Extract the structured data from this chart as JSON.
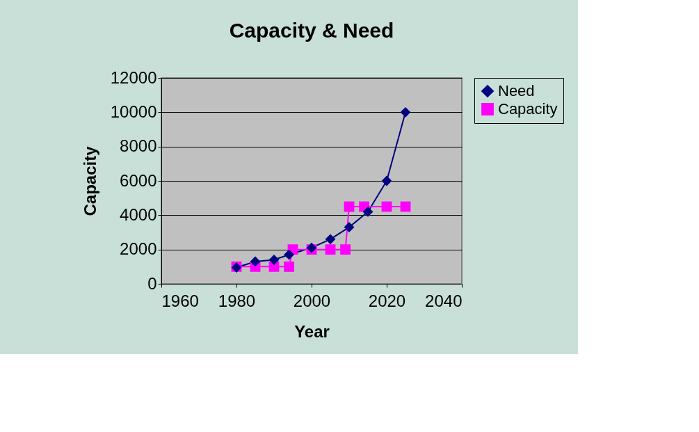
{
  "chart_data": {
    "type": "line",
    "title": "Capacity & Need",
    "xlabel": "Year",
    "ylabel": "Capacity",
    "xlim": [
      1960,
      2040
    ],
    "xticks": [
      1960,
      1980,
      2000,
      2020,
      2040
    ],
    "ylim": [
      0,
      12000
    ],
    "yticks": [
      0,
      2000,
      4000,
      6000,
      8000,
      10000,
      12000
    ],
    "grid": "y",
    "legend": "right",
    "line_style": "solid",
    "series": [
      {
        "name": "Need",
        "color": "#000080",
        "marker": "diamond",
        "x": [
          1980,
          1985,
          1990,
          1994,
          2000,
          2005,
          2010,
          2015,
          2020,
          2025
        ],
        "values": [
          950,
          1300,
          1400,
          1700,
          2100,
          2600,
          3300,
          4200,
          6000,
          10000
        ]
      },
      {
        "name": "Capacity",
        "color": "#ff00ff",
        "marker": "square",
        "x": [
          1980,
          1985,
          1990,
          1994,
          1995,
          2000,
          2005,
          2009,
          2010,
          2014,
          2020,
          2025
        ],
        "values": [
          1000,
          1000,
          1000,
          1000,
          2000,
          2000,
          2000,
          2000,
          4500,
          4500,
          4500,
          4500
        ]
      }
    ]
  }
}
